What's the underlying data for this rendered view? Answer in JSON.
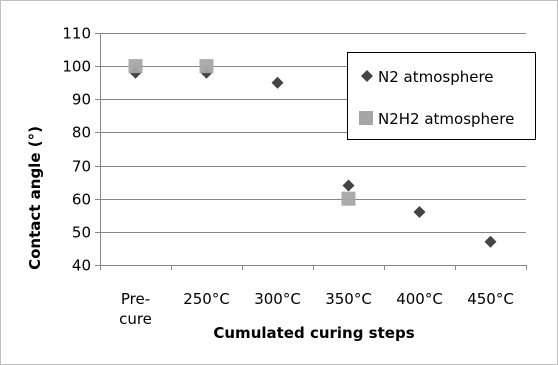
{
  "chart_data": {
    "type": "scatter",
    "xlabel": "Cumulated curing steps",
    "ylabel": "Contact angle (°)",
    "categories": [
      [
        "Pre-",
        "cure"
      ],
      [
        "250°C"
      ],
      [
        "300°C"
      ],
      [
        "350°C"
      ],
      [
        "400°C"
      ],
      [
        "450°C"
      ]
    ],
    "ylim": [
      40,
      110
    ],
    "yticks": [
      40,
      50,
      60,
      70,
      80,
      90,
      100,
      110
    ],
    "grid": "horizontal",
    "legend_position": "right",
    "series": [
      {
        "name": "N2 atmosphere",
        "marker": "diamond",
        "color": "#444444",
        "points": [
          [
            0,
            98
          ],
          [
            1,
            98
          ],
          [
            2,
            95
          ],
          [
            3,
            64
          ],
          [
            4,
            56
          ],
          [
            5,
            47
          ]
        ]
      },
      {
        "name": "N2H2 atmosphere",
        "marker": "square",
        "color": "#a6a6a6",
        "points": [
          [
            0,
            100
          ],
          [
            1,
            100
          ],
          [
            3,
            60
          ]
        ]
      }
    ]
  }
}
